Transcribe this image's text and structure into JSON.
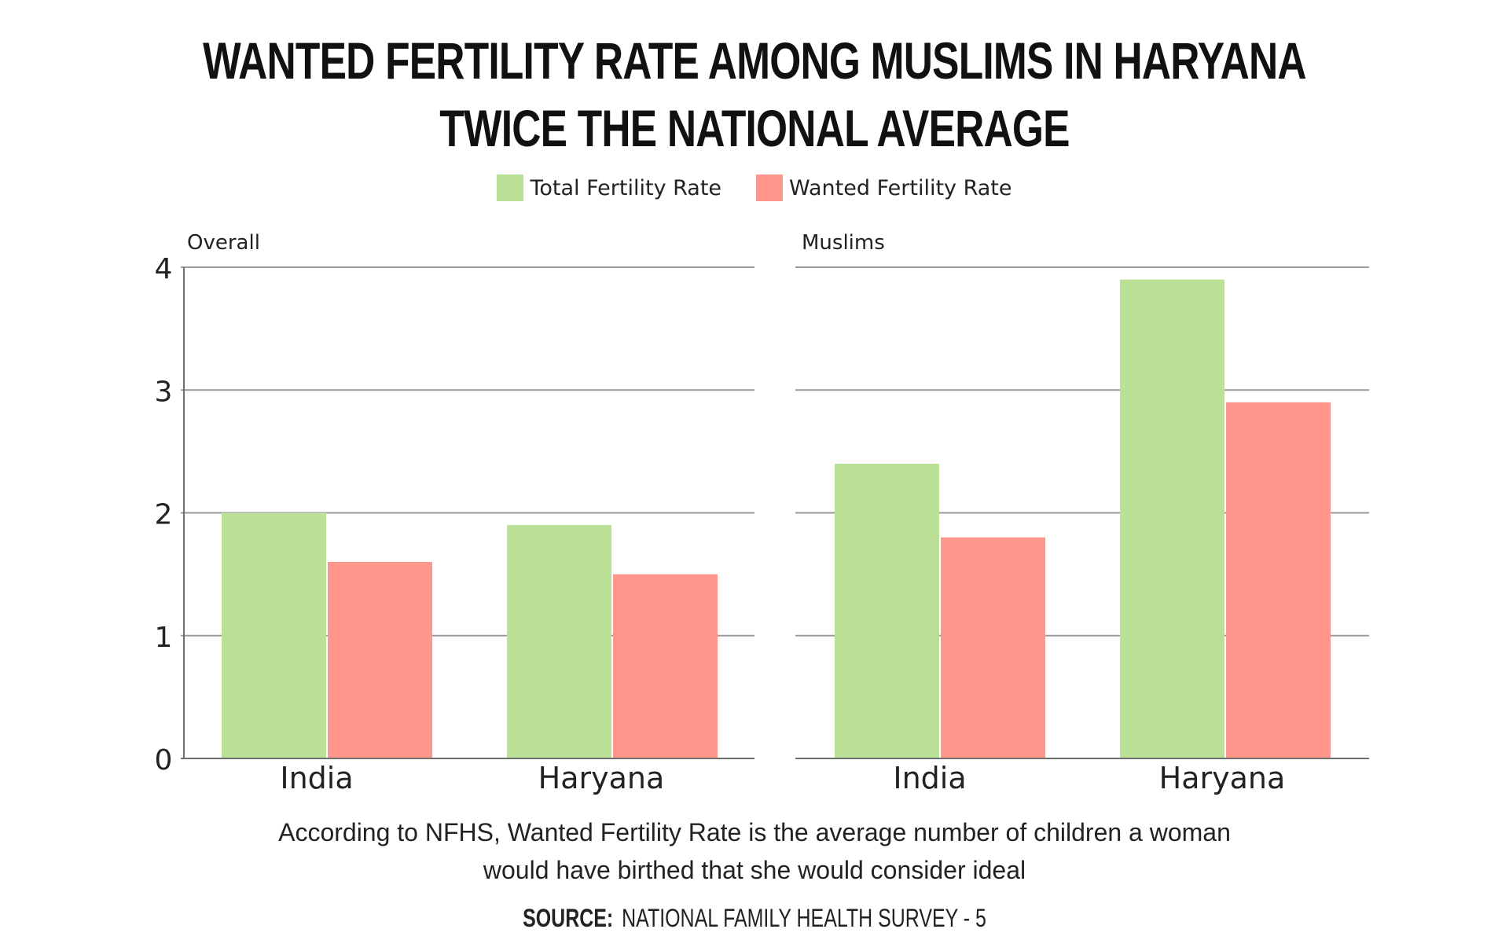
{
  "chart_data": {
    "type": "bar",
    "title_line1": "WANTED FERTILITY RATE AMONG MUSLIMS IN HARYANA",
    "title_line2": "TWICE THE NATIONAL AVERAGE",
    "legend": [
      {
        "label": "Total Fertility Rate",
        "color": "#bae196"
      },
      {
        "label": "Wanted Fertility Rate",
        "color": "#fe968c"
      }
    ],
    "y_ticks": [
      "0",
      "1",
      "2",
      "3",
      "4"
    ],
    "ylim": [
      0,
      4
    ],
    "categories": [
      "India",
      "Haryana"
    ],
    "panels": [
      {
        "name": "Overall",
        "series": [
          {
            "name": "Total Fertility Rate",
            "values": [
              2.0,
              1.9
            ]
          },
          {
            "name": "Wanted Fertility Rate",
            "values": [
              1.6,
              1.5
            ]
          }
        ]
      },
      {
        "name": "Muslims",
        "series": [
          {
            "name": "Total Fertility Rate",
            "values": [
              2.4,
              3.9
            ]
          },
          {
            "name": "Wanted Fertility Rate",
            "values": [
              1.8,
              2.9
            ]
          }
        ]
      }
    ],
    "grid": true,
    "legend_position": "top-center"
  },
  "note_line1": "According to NFHS, Wanted Fertility Rate is the average number of children a woman",
  "note_line2": "would have birthed that she would consider ideal",
  "source_label": "SOURCE:",
  "source_text": "NATIONAL FAMILY HEALTH SURVEY - 5"
}
